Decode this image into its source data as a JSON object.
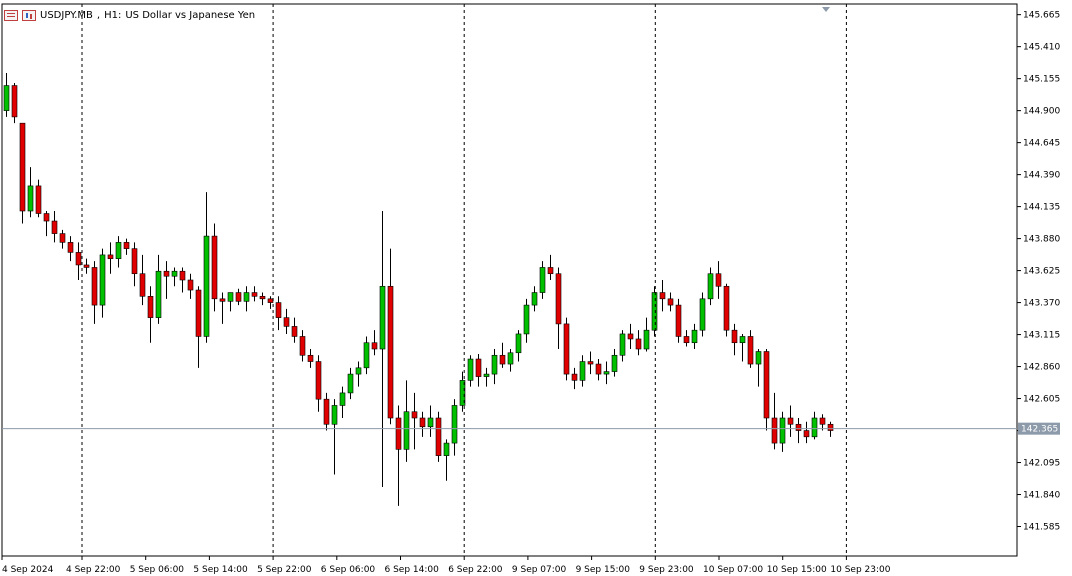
{
  "header": {
    "symbol": "USDJPY.MB",
    "timeframe": "H1:",
    "description": "US Dollar vs Japanese Yen",
    "icon_left": "list-icon",
    "icon_right": "chart-icon"
  },
  "colors": {
    "bull": "#00c000",
    "bear": "#e00000",
    "price_line": "#8c9aaa",
    "price_badge": "#8c9aaa",
    "grid_separator": "#000000"
  },
  "chart_data": {
    "type": "candlestick",
    "title": "USDJPY.MB, H1:  US Dollar vs Japanese Yen",
    "current_price": 142.365,
    "current_price_label": "142.365",
    "ylim": [
      141.35,
      145.75
    ],
    "y_ticks": [
      "145.665",
      "145.410",
      "145.155",
      "144.900",
      "144.645",
      "144.390",
      "144.135",
      "143.880",
      "143.625",
      "143.370",
      "143.115",
      "142.860",
      "142.605",
      "142.350",
      "142.095",
      "141.840",
      "141.585"
    ],
    "x_labels": [
      "4 Sep 2024",
      "4 Sep 22:00",
      "5 Sep 06:00",
      "5 Sep 14:00",
      "5 Sep 22:00",
      "6 Sep 06:00",
      "6 Sep 14:00",
      "6 Sep 22:00",
      "9 Sep 07:00",
      "9 Sep 15:00",
      "9 Sep 23:00",
      "10 Sep 07:00",
      "10 Sep 15:00",
      "10 Sep 23:00"
    ],
    "session_separators_after_label_index": [
      1,
      4,
      7,
      10,
      13
    ],
    "candles": [
      {
        "o": 144.9,
        "h": 145.2,
        "l": 144.85,
        "c": 145.1
      },
      {
        "o": 145.1,
        "h": 145.12,
        "l": 144.8,
        "c": 144.85
      },
      {
        "o": 144.8,
        "h": 144.8,
        "l": 144.0,
        "c": 144.1
      },
      {
        "o": 144.1,
        "h": 144.45,
        "l": 144.05,
        "c": 144.3
      },
      {
        "o": 144.3,
        "h": 144.35,
        "l": 144.05,
        "c": 144.08
      },
      {
        "o": 144.08,
        "h": 144.1,
        "l": 143.9,
        "c": 144.02
      },
      {
        "o": 144.02,
        "h": 144.1,
        "l": 143.85,
        "c": 143.92
      },
      {
        "o": 143.92,
        "h": 143.95,
        "l": 143.8,
        "c": 143.85
      },
      {
        "o": 143.85,
        "h": 143.9,
        "l": 143.7,
        "c": 143.77
      },
      {
        "o": 143.77,
        "h": 143.85,
        "l": 143.55,
        "c": 143.67
      },
      {
        "o": 143.67,
        "h": 143.72,
        "l": 143.6,
        "c": 143.65
      },
      {
        "o": 143.65,
        "h": 143.7,
        "l": 143.2,
        "c": 143.35
      },
      {
        "o": 143.35,
        "h": 143.8,
        "l": 143.25,
        "c": 143.75
      },
      {
        "o": 143.75,
        "h": 143.85,
        "l": 143.6,
        "c": 143.72
      },
      {
        "o": 143.72,
        "h": 143.9,
        "l": 143.65,
        "c": 143.85
      },
      {
        "o": 143.85,
        "h": 143.88,
        "l": 143.75,
        "c": 143.8
      },
      {
        "o": 143.8,
        "h": 143.85,
        "l": 143.5,
        "c": 143.6
      },
      {
        "o": 143.6,
        "h": 143.75,
        "l": 143.35,
        "c": 143.42
      },
      {
        "o": 143.42,
        "h": 143.5,
        "l": 143.05,
        "c": 143.25
      },
      {
        "o": 143.25,
        "h": 143.75,
        "l": 143.2,
        "c": 143.62
      },
      {
        "o": 143.62,
        "h": 143.7,
        "l": 143.4,
        "c": 143.58
      },
      {
        "o": 143.58,
        "h": 143.65,
        "l": 143.5,
        "c": 143.62
      },
      {
        "o": 143.62,
        "h": 143.65,
        "l": 143.45,
        "c": 143.55
      },
      {
        "o": 143.55,
        "h": 143.6,
        "l": 143.4,
        "c": 143.47
      },
      {
        "o": 143.47,
        "h": 143.5,
        "l": 142.85,
        "c": 143.1
      },
      {
        "o": 143.1,
        "h": 144.25,
        "l": 143.05,
        "c": 143.9
      },
      {
        "o": 143.9,
        "h": 144.0,
        "l": 143.3,
        "c": 143.4
      },
      {
        "o": 143.4,
        "h": 143.45,
        "l": 143.2,
        "c": 143.38
      },
      {
        "o": 143.38,
        "h": 143.45,
        "l": 143.3,
        "c": 143.45
      },
      {
        "o": 143.45,
        "h": 143.48,
        "l": 143.35,
        "c": 143.38
      },
      {
        "o": 143.38,
        "h": 143.5,
        "l": 143.3,
        "c": 143.45
      },
      {
        "o": 143.45,
        "h": 143.5,
        "l": 143.38,
        "c": 143.42
      },
      {
        "o": 143.42,
        "h": 143.45,
        "l": 143.35,
        "c": 143.4
      },
      {
        "o": 143.4,
        "h": 143.42,
        "l": 143.32,
        "c": 143.37
      },
      {
        "o": 143.37,
        "h": 143.42,
        "l": 143.15,
        "c": 143.25
      },
      {
        "o": 143.25,
        "h": 143.32,
        "l": 143.12,
        "c": 143.18
      },
      {
        "o": 143.18,
        "h": 143.25,
        "l": 143.05,
        "c": 143.1
      },
      {
        "o": 143.1,
        "h": 143.15,
        "l": 142.9,
        "c": 142.95
      },
      {
        "o": 142.95,
        "h": 143.0,
        "l": 142.85,
        "c": 142.9
      },
      {
        "o": 142.9,
        "h": 142.95,
        "l": 142.5,
        "c": 142.6
      },
      {
        "o": 142.6,
        "h": 142.65,
        "l": 142.35,
        "c": 142.4
      },
      {
        "o": 142.4,
        "h": 142.6,
        "l": 142.0,
        "c": 142.55
      },
      {
        "o": 142.55,
        "h": 142.7,
        "l": 142.45,
        "c": 142.65
      },
      {
        "o": 142.65,
        "h": 142.85,
        "l": 142.6,
        "c": 142.8
      },
      {
        "o": 142.8,
        "h": 142.9,
        "l": 142.7,
        "c": 142.85
      },
      {
        "o": 142.85,
        "h": 143.1,
        "l": 142.8,
        "c": 143.05
      },
      {
        "o": 143.05,
        "h": 143.15,
        "l": 142.95,
        "c": 143.0
      },
      {
        "o": 143.0,
        "h": 144.1,
        "l": 141.9,
        "c": 143.5
      },
      {
        "o": 143.5,
        "h": 143.8,
        "l": 142.4,
        "c": 142.45
      },
      {
        "o": 142.45,
        "h": 142.55,
        "l": 141.75,
        "c": 142.2
      },
      {
        "o": 142.2,
        "h": 142.75,
        "l": 142.1,
        "c": 142.5
      },
      {
        "o": 142.5,
        "h": 142.65,
        "l": 142.2,
        "c": 142.45
      },
      {
        "o": 142.45,
        "h": 142.5,
        "l": 142.3,
        "c": 142.38
      },
      {
        "o": 142.38,
        "h": 142.55,
        "l": 142.3,
        "c": 142.45
      },
      {
        "o": 142.45,
        "h": 142.5,
        "l": 142.1,
        "c": 142.15
      },
      {
        "o": 142.15,
        "h": 142.28,
        "l": 141.95,
        "c": 142.25
      },
      {
        "o": 142.25,
        "h": 142.6,
        "l": 142.15,
        "c": 142.55
      },
      {
        "o": 142.55,
        "h": 142.82,
        "l": 142.5,
        "c": 142.75
      },
      {
        "o": 142.75,
        "h": 142.95,
        "l": 142.7,
        "c": 142.92
      },
      {
        "o": 142.92,
        "h": 142.96,
        "l": 142.7,
        "c": 142.78
      },
      {
        "o": 142.78,
        "h": 142.85,
        "l": 142.7,
        "c": 142.8
      },
      {
        "o": 142.8,
        "h": 143.0,
        "l": 142.72,
        "c": 142.95
      },
      {
        "o": 142.95,
        "h": 143.05,
        "l": 142.85,
        "c": 142.88
      },
      {
        "o": 142.88,
        "h": 143.0,
        "l": 142.82,
        "c": 142.97
      },
      {
        "o": 142.97,
        "h": 143.15,
        "l": 142.9,
        "c": 143.12
      },
      {
        "o": 143.12,
        "h": 143.4,
        "l": 143.05,
        "c": 143.35
      },
      {
        "o": 143.35,
        "h": 143.5,
        "l": 143.3,
        "c": 143.45
      },
      {
        "o": 143.45,
        "h": 143.7,
        "l": 143.4,
        "c": 143.65
      },
      {
        "o": 143.65,
        "h": 143.75,
        "l": 143.55,
        "c": 143.6
      },
      {
        "o": 143.6,
        "h": 143.65,
        "l": 143.0,
        "c": 143.2
      },
      {
        "o": 143.2,
        "h": 143.25,
        "l": 142.75,
        "c": 142.8
      },
      {
        "o": 142.8,
        "h": 142.85,
        "l": 142.68,
        "c": 142.75
      },
      {
        "o": 142.75,
        "h": 142.95,
        "l": 142.7,
        "c": 142.9
      },
      {
        "o": 142.9,
        "h": 142.98,
        "l": 142.8,
        "c": 142.88
      },
      {
        "o": 142.88,
        "h": 142.92,
        "l": 142.75,
        "c": 142.8
      },
      {
        "o": 142.8,
        "h": 142.9,
        "l": 142.72,
        "c": 142.82
      },
      {
        "o": 142.82,
        "h": 143.0,
        "l": 142.78,
        "c": 142.95
      },
      {
        "o": 142.95,
        "h": 143.15,
        "l": 142.9,
        "c": 143.12
      },
      {
        "o": 143.12,
        "h": 143.2,
        "l": 143.0,
        "c": 143.08
      },
      {
        "o": 143.08,
        "h": 143.15,
        "l": 142.95,
        "c": 143.0
      },
      {
        "o": 143.0,
        "h": 143.25,
        "l": 142.98,
        "c": 143.15
      },
      {
        "o": 143.15,
        "h": 143.5,
        "l": 143.1,
        "c": 143.45
      },
      {
        "o": 143.45,
        "h": 143.55,
        "l": 143.3,
        "c": 143.4
      },
      {
        "o": 143.4,
        "h": 143.45,
        "l": 143.3,
        "c": 143.35
      },
      {
        "o": 143.35,
        "h": 143.4,
        "l": 143.05,
        "c": 143.1
      },
      {
        "o": 143.1,
        "h": 143.15,
        "l": 143.02,
        "c": 143.05
      },
      {
        "o": 143.05,
        "h": 143.2,
        "l": 143.0,
        "c": 143.15
      },
      {
        "o": 143.15,
        "h": 143.45,
        "l": 143.1,
        "c": 143.4
      },
      {
        "o": 143.4,
        "h": 143.65,
        "l": 143.35,
        "c": 143.6
      },
      {
        "o": 143.6,
        "h": 143.7,
        "l": 143.4,
        "c": 143.5
      },
      {
        "o": 143.5,
        "h": 143.52,
        "l": 143.1,
        "c": 143.15
      },
      {
        "o": 143.15,
        "h": 143.2,
        "l": 142.95,
        "c": 143.05
      },
      {
        "o": 143.05,
        "h": 143.12,
        "l": 142.9,
        "c": 143.1
      },
      {
        "o": 143.1,
        "h": 143.15,
        "l": 142.85,
        "c": 142.88
      },
      {
        "o": 142.88,
        "h": 143.0,
        "l": 142.7,
        "c": 142.98
      },
      {
        "o": 142.98,
        "h": 143.0,
        "l": 142.35,
        "c": 142.45
      },
      {
        "o": 142.45,
        "h": 142.65,
        "l": 142.2,
        "c": 142.25
      },
      {
        "o": 142.25,
        "h": 142.5,
        "l": 142.18,
        "c": 142.45
      },
      {
        "o": 142.45,
        "h": 142.55,
        "l": 142.3,
        "c": 142.4
      },
      {
        "o": 142.4,
        "h": 142.45,
        "l": 142.25,
        "c": 142.35
      },
      {
        "o": 142.35,
        "h": 142.42,
        "l": 142.25,
        "c": 142.3
      },
      {
        "o": 142.3,
        "h": 142.5,
        "l": 142.28,
        "c": 142.45
      },
      {
        "o": 142.45,
        "h": 142.48,
        "l": 142.35,
        "c": 142.4
      },
      {
        "o": 142.4,
        "h": 142.42,
        "l": 142.3,
        "c": 142.35
      }
    ]
  }
}
